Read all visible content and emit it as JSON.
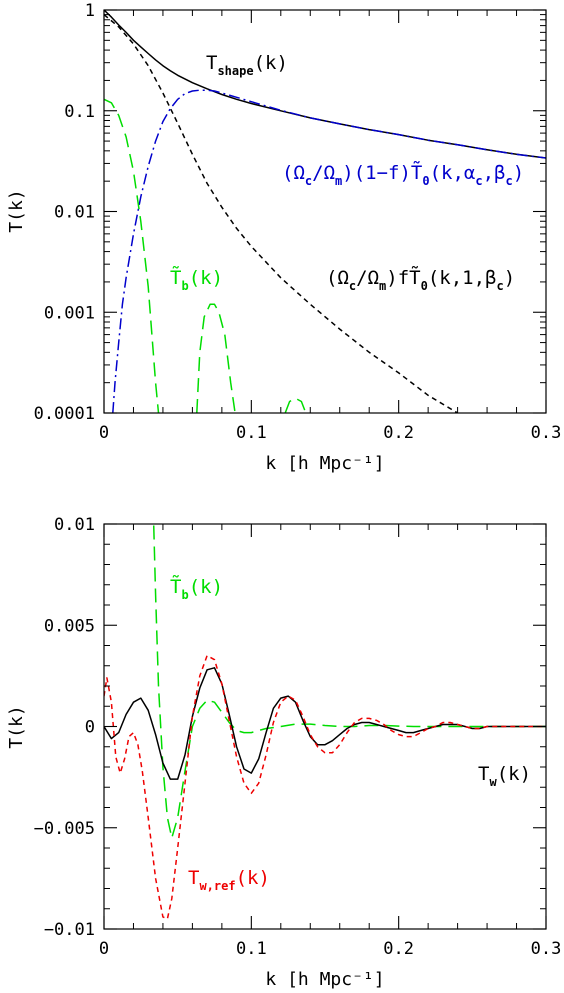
{
  "chart_data": [
    {
      "type": "line",
      "xlabel": "k [h Mpc⁻¹]",
      "ylabel": "T(k)",
      "xlim": [
        0,
        0.3
      ],
      "ylim": [
        0.0001,
        1
      ],
      "yscale": "log",
      "x_ticks": [
        0,
        0.1,
        0.2,
        0.3
      ],
      "x_tick_labels": [
        "0",
        "0.1",
        "0.2",
        "0.3"
      ],
      "y_ticks": [
        0.0001,
        0.001,
        0.01,
        0.1,
        1
      ],
      "y_tick_labels": [
        "0.0001",
        "0.001",
        "0.01",
        "0.1",
        "1"
      ],
      "series": [
        {
          "name": "T_shape(k)",
          "style": "solid",
          "color": "#000000",
          "x": [
            0,
            0.005,
            0.01,
            0.015,
            0.02,
            0.025,
            0.03,
            0.035,
            0.04,
            0.045,
            0.05,
            0.06,
            0.07,
            0.08,
            0.09,
            0.1,
            0.12,
            0.14,
            0.16,
            0.18,
            0.2,
            0.22,
            0.24,
            0.26,
            0.28,
            0.3
          ],
          "y": [
            1,
            0.85,
            0.71,
            0.6,
            0.5,
            0.43,
            0.37,
            0.32,
            0.28,
            0.25,
            0.225,
            0.19,
            0.165,
            0.145,
            0.13,
            0.118,
            0.1,
            0.085,
            0.074,
            0.065,
            0.058,
            0.051,
            0.046,
            0.041,
            0.037,
            0.034
          ]
        },
        {
          "name": "(Ωc/Ωm)(1−f)T̃0(k,αc,βc)",
          "style": "dash-dot",
          "color": "#0000cc",
          "x": [
            0.006,
            0.0075,
            0.01,
            0.0125,
            0.015,
            0.02,
            0.025,
            0.03,
            0.035,
            0.04,
            0.045,
            0.05,
            0.055,
            0.06,
            0.065,
            0.07,
            0.075,
            0.08,
            0.09,
            0.1,
            0.12,
            0.14,
            0.16,
            0.18,
            0.2,
            0.22,
            0.24,
            0.26,
            0.28,
            0.3
          ],
          "y": [
            0.0001,
            0.0002,
            0.0005,
            0.0012,
            0.0022,
            0.006,
            0.014,
            0.028,
            0.05,
            0.078,
            0.105,
            0.13,
            0.148,
            0.157,
            0.16,
            0.16,
            0.157,
            0.15,
            0.136,
            0.123,
            0.101,
            0.085,
            0.074,
            0.065,
            0.058,
            0.051,
            0.046,
            0.041,
            0.037,
            0.034
          ]
        },
        {
          "name": "(Ωc/Ωm)fT̃0(k,1,βc)",
          "style": "short-dash",
          "color": "#000000",
          "x": [
            0,
            0.01,
            0.02,
            0.03,
            0.04,
            0.05,
            0.06,
            0.07,
            0.08,
            0.09,
            0.1,
            0.12,
            0.14,
            0.16,
            0.18,
            0.2,
            0.22,
            0.24
          ],
          "y": [
            0.9,
            0.68,
            0.46,
            0.28,
            0.15,
            0.075,
            0.037,
            0.019,
            0.011,
            0.0068,
            0.0045,
            0.0022,
            0.0012,
            0.00068,
            0.0004,
            0.00025,
            0.00015,
            0.0001
          ]
        },
        {
          "name": "T̃b(k)",
          "style": "long-dash",
          "color": "#00dd00",
          "segments": [
            {
              "x": [
                0,
                0.005,
                0.01,
                0.015,
                0.02,
                0.025,
                0.03,
                0.035,
                0.037
              ],
              "y": [
                0.13,
                0.12,
                0.09,
                0.055,
                0.025,
                0.008,
                0.0018,
                0.0002,
                0.0001
              ]
            },
            {
              "x": [
                0.063,
                0.065,
                0.068,
                0.072,
                0.075,
                0.078,
                0.082,
                0.086,
                0.089
              ],
              "y": [
                0.0001,
                0.0004,
                0.0009,
                0.0012,
                0.0012,
                0.001,
                0.0006,
                0.0002,
                0.0001
              ]
            },
            {
              "x": [
                0.123,
                0.126,
                0.13,
                0.134,
                0.137
              ],
              "y": [
                0.0001,
                0.00013,
                0.00014,
                0.00013,
                0.0001
              ]
            }
          ]
        }
      ],
      "annotations": [
        {
          "main": "T",
          "sub": "shape",
          "tail": "(k)",
          "color": "#000000"
        },
        {
          "main": "(Ω",
          "sub": "c",
          "tail": "/Ω",
          "sub2": "m",
          "tail2": ")(1−f)T̃",
          "sub3": "0",
          "tail3": "(k,α",
          "sub4": "c",
          "tail4": ",β",
          "sub5": "c",
          "tail5": ")",
          "color": "#0000cc"
        },
        {
          "main": "T̃",
          "sub": "b",
          "tail": "(k)",
          "color": "#00dd00"
        },
        {
          "main": "(Ω",
          "sub": "c",
          "tail": "/Ω",
          "sub2": "m",
          "tail2": ")fT̃",
          "sub3": "0",
          "tail3": "(k,1,β",
          "sub4": "c",
          "tail4": ")",
          "color": "#000000"
        }
      ]
    },
    {
      "type": "line",
      "xlabel": "k [h Mpc⁻¹]",
      "ylabel": "T(k)",
      "xlim": [
        0,
        0.3
      ],
      "ylim": [
        -0.01,
        0.01
      ],
      "x_ticks": [
        0,
        0.1,
        0.2,
        0.3
      ],
      "x_tick_labels": [
        "0",
        "0.1",
        "0.2",
        "0.3"
      ],
      "y_ticks": [
        -0.01,
        -0.005,
        0,
        0.005,
        0.01
      ],
      "y_tick_labels": [
        "−0.01",
        "−0.005",
        "0",
        "0.005",
        "0.01"
      ],
      "series": [
        {
          "name": "T̃b(k)",
          "style": "long-dash",
          "color": "#00dd00",
          "x": [
            0.033,
            0.035,
            0.037,
            0.04,
            0.043,
            0.046,
            0.05,
            0.055,
            0.06,
            0.065,
            0.07,
            0.075,
            0.08,
            0.085,
            0.09,
            0.095,
            0.1,
            0.105,
            0.11,
            0.12,
            0.13,
            0.14,
            0.15,
            0.16,
            0.17,
            0.18,
            0.19,
            0.2,
            0.21,
            0.22,
            0.23,
            0.24,
            0.25,
            0.26,
            0.27,
            0.28,
            0.29,
            0.3
          ],
          "y": [
            0.012,
            0.0065,
            0.002,
            -0.002,
            -0.0045,
            -0.0055,
            -0.0045,
            -0.0022,
            0,
            0.0009,
            0.0013,
            0.0012,
            0.0007,
            0.0002,
            -0.0002,
            -0.0003,
            -0.0003,
            -0.0002,
            -0.0001,
            0,
            0.00012,
            0.00012,
            5e-05,
            0,
            0,
            5e-05,
            5e-05,
            2e-05,
            0,
            0,
            0,
            0,
            0,
            0,
            0,
            0,
            0,
            0
          ]
        },
        {
          "name": "T_w(k)",
          "style": "solid",
          "color": "#000000",
          "x": [
            0,
            0.005,
            0.01,
            0.015,
            0.02,
            0.025,
            0.03,
            0.035,
            0.04,
            0.045,
            0.05,
            0.055,
            0.06,
            0.065,
            0.07,
            0.075,
            0.08,
            0.085,
            0.09,
            0.095,
            0.1,
            0.105,
            0.11,
            0.115,
            0.12,
            0.125,
            0.13,
            0.135,
            0.14,
            0.145,
            0.15,
            0.155,
            0.16,
            0.165,
            0.17,
            0.175,
            0.18,
            0.185,
            0.19,
            0.195,
            0.2,
            0.205,
            0.21,
            0.215,
            0.22,
            0.225,
            0.23,
            0.235,
            0.24,
            0.245,
            0.25,
            0.255,
            0.26,
            0.265,
            0.27,
            0.28,
            0.29,
            0.3
          ],
          "y": [
            0,
            -0.0006,
            -0.0003,
            0.0006,
            0.0012,
            0.0014,
            0.0008,
            -0.0004,
            -0.0018,
            -0.0026,
            -0.0026,
            -0.0014,
            0.0005,
            0.0019,
            0.0028,
            0.0029,
            0.0021,
            0.0006,
            -0.001,
            -0.0021,
            -0.0023,
            -0.0016,
            -0.0003,
            0.0009,
            0.0014,
            0.0015,
            0.0012,
            0.0003,
            -0.0005,
            -0.0009,
            -0.0009,
            -0.0007,
            -0.0004,
            -0.0001,
            0.0001,
            0.0002,
            0.0002,
            0.0001,
            0,
            -0.0001,
            -0.0002,
            -0.0003,
            -0.0003,
            -0.0002,
            -0.0001,
            0,
            0.0001,
            0.0001,
            0.0001,
            0,
            -0.0001,
            -0.0001,
            0,
            0,
            0,
            0,
            0,
            0
          ]
        },
        {
          "name": "T_w,ref(k)",
          "style": "short-dash",
          "color": "#ee0000",
          "x": [
            0,
            0.002,
            0.005,
            0.008,
            0.011,
            0.014,
            0.017,
            0.02,
            0.023,
            0.026,
            0.03,
            0.035,
            0.04,
            0.043,
            0.046,
            0.05,
            0.055,
            0.06,
            0.065,
            0.07,
            0.075,
            0.08,
            0.085,
            0.09,
            0.095,
            0.1,
            0.105,
            0.11,
            0.115,
            0.12,
            0.125,
            0.13,
            0.135,
            0.14,
            0.145,
            0.15,
            0.155,
            0.16,
            0.165,
            0.17,
            0.175,
            0.18,
            0.185,
            0.19,
            0.195,
            0.2,
            0.205,
            0.21,
            0.215,
            0.22,
            0.225,
            0.23,
            0.235,
            0.24,
            0.245,
            0.25,
            0.255,
            0.26,
            0.27,
            0.28,
            0.29,
            0.3
          ],
          "y": [
            0.0015,
            0.0024,
            0.0012,
            -0.0015,
            -0.0023,
            -0.0016,
            -0.0005,
            -0.0003,
            -0.0009,
            -0.0022,
            -0.0045,
            -0.0075,
            -0.0094,
            -0.0095,
            -0.0085,
            -0.006,
            -0.0028,
            0.0005,
            0.0025,
            0.0035,
            0.0033,
            0.0021,
            0.0003,
            -0.0015,
            -0.0028,
            -0.0033,
            -0.0028,
            -0.0014,
            0.0002,
            0.0012,
            0.0015,
            0.0013,
            0.0005,
            -0.0004,
            -0.001,
            -0.0013,
            -0.0013,
            -0.0009,
            -0.0003,
            0.0002,
            0.0004,
            0.0004,
            0.0003,
            0.0001,
            -0.0002,
            -0.0004,
            -0.0005,
            -0.0005,
            -0.0003,
            -0.0001,
            0,
            0.0002,
            0.0002,
            0.0001,
            0,
            -0.0001,
            -0.0001,
            0,
            0,
            0,
            0,
            0
          ]
        }
      ],
      "annotations": [
        {
          "main": "T̃",
          "sub": "b",
          "tail": "(k)",
          "color": "#00dd00"
        },
        {
          "main": "T",
          "sub": "w",
          "tail": "(k)",
          "color": "#000000"
        },
        {
          "main": "T",
          "sub": "w,ref",
          "tail": "(k)",
          "color": "#ee0000"
        }
      ]
    }
  ]
}
